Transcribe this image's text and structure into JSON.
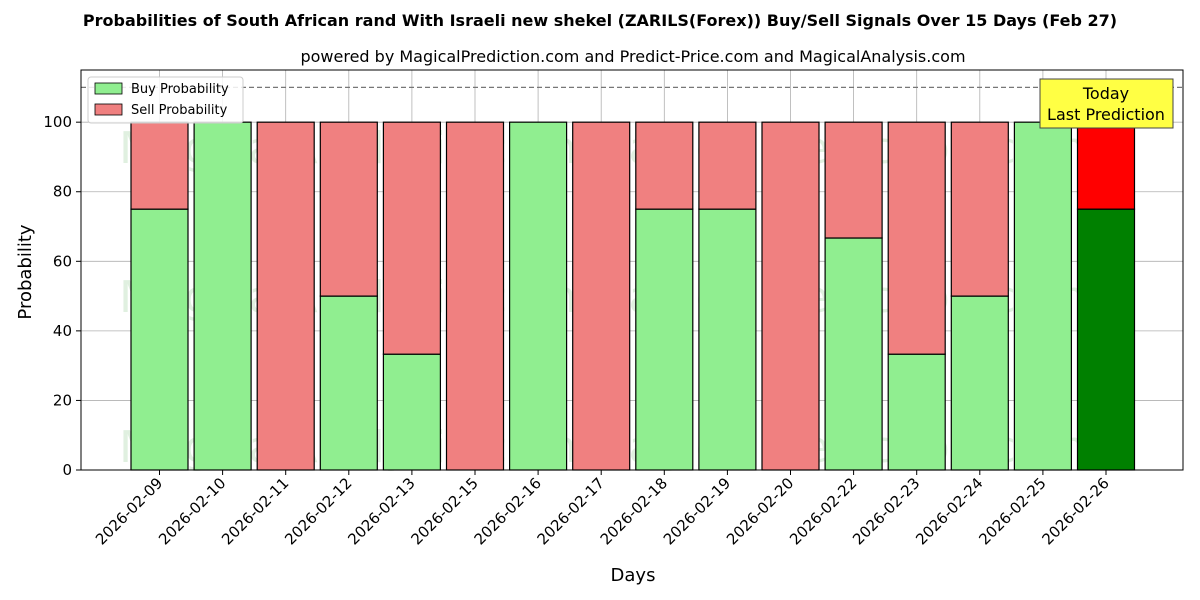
{
  "chart_data": {
    "type": "bar",
    "stacked": true,
    "title": "Probabilities of South African rand With Israeli new shekel (ZARILS(Forex)) Buy/Sell Signals Over 15 Days (Feb 27)",
    "subtitle": "powered by MagicalPrediction.com and Predict-Price.com and MagicalAnalysis.com",
    "xlabel": "Days",
    "ylabel": "Probability",
    "ylim": [
      0,
      115
    ],
    "yticks": [
      0,
      20,
      40,
      60,
      80,
      100
    ],
    "grid": true,
    "legend_position": "top-left",
    "reference_line": 110,
    "categories": [
      "2026-02-09",
      "2026-02-10",
      "2026-02-11",
      "2026-02-12",
      "2026-02-13",
      "2026-02-15",
      "2026-02-16",
      "2026-02-17",
      "2026-02-18",
      "2026-02-19",
      "2026-02-20",
      "2026-02-22",
      "2026-02-23",
      "2026-02-24",
      "2026-02-25",
      "2026-02-26"
    ],
    "series": [
      {
        "name": "Buy Probability",
        "color": "#90ee90",
        "values": [
          75,
          100,
          0,
          50,
          33.3,
          0,
          100,
          0,
          75,
          75,
          0,
          66.7,
          33.3,
          50,
          100,
          75
        ]
      },
      {
        "name": "Sell Probability",
        "color": "#f08080",
        "values": [
          25,
          0,
          100,
          50,
          66.7,
          100,
          0,
          100,
          25,
          25,
          100,
          33.3,
          66.7,
          50,
          0,
          25
        ]
      }
    ],
    "highlight": {
      "index": 15,
      "buy_color": "#008000",
      "sell_color": "#ff0000"
    },
    "annotation": {
      "lines": [
        "Today",
        "Last Prediction"
      ],
      "background": "#ffff44"
    },
    "watermarks": [
      "MagicalAnalysis.com",
      "MagicalPrediction.com",
      "MagicalAnalysis.com",
      "MagicalPrediction.com",
      "MagicalAnalysis.com",
      "MagicalPrediction.com"
    ]
  }
}
